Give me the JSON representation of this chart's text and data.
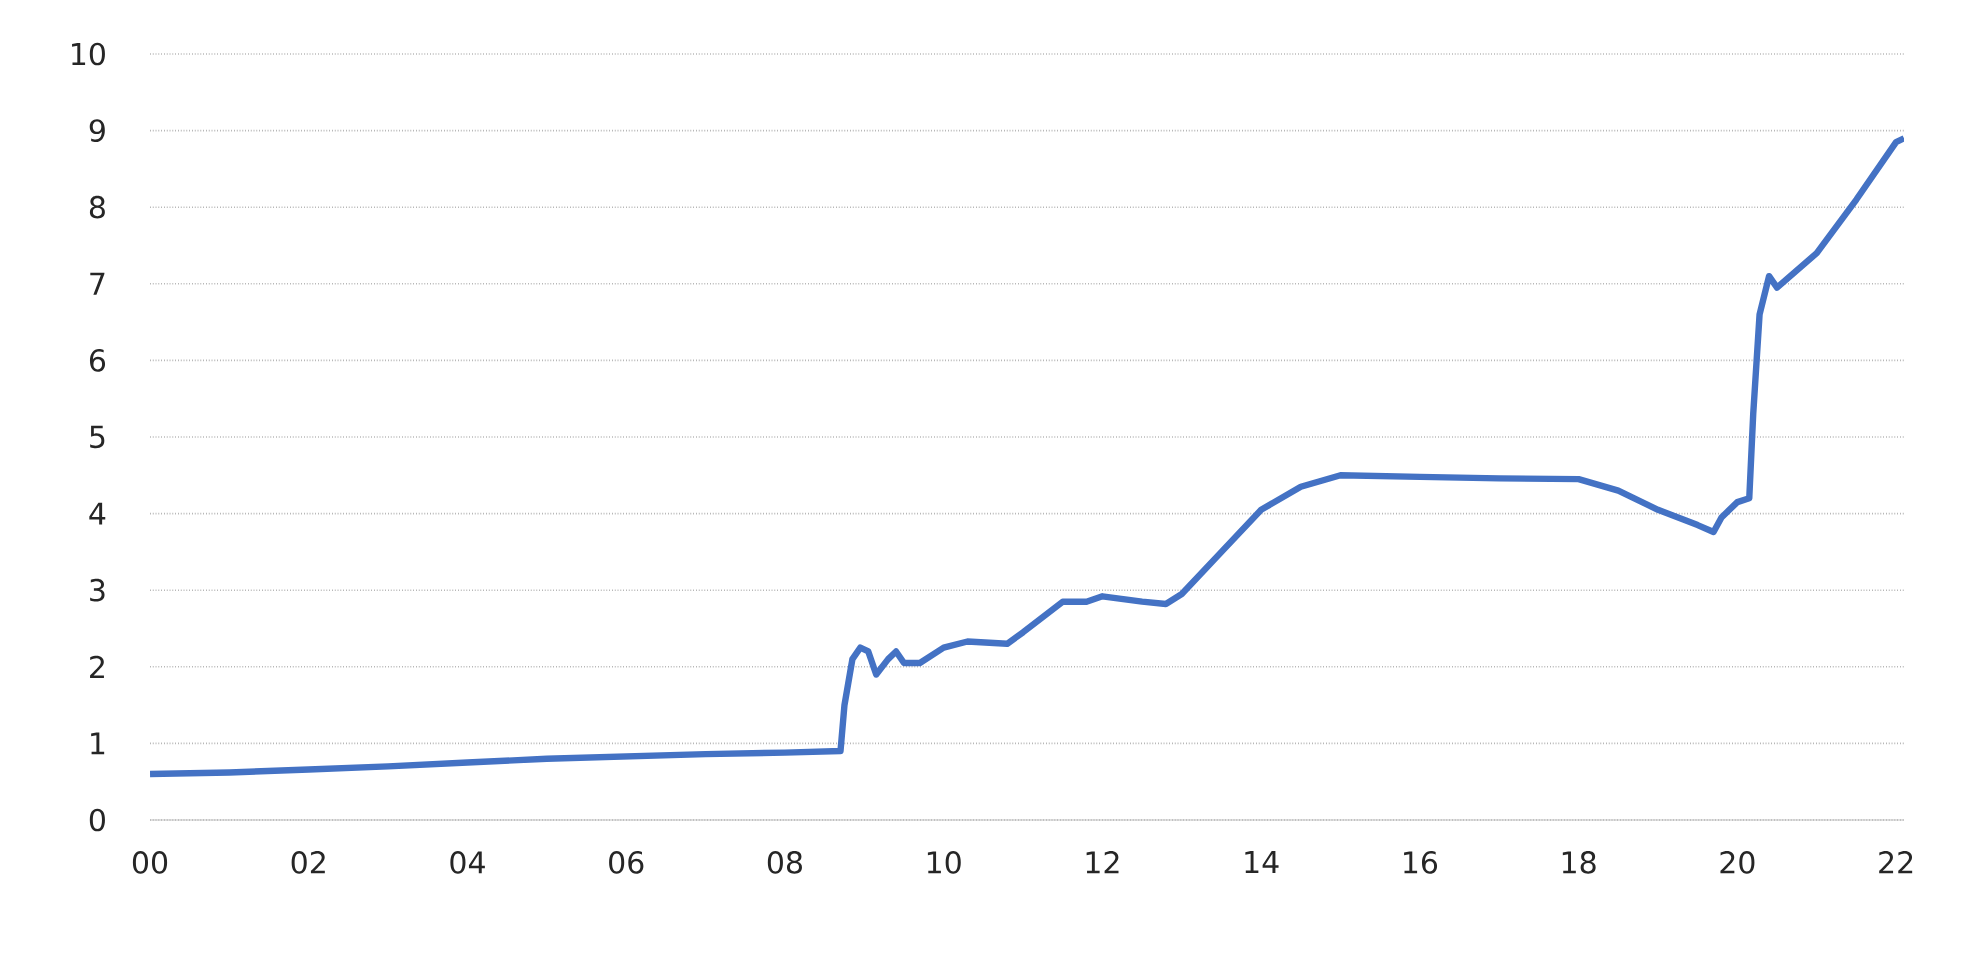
{
  "chart_data": {
    "type": "line",
    "x": [
      2000,
      2001,
      2002,
      2003,
      2004,
      2005,
      2006,
      2007,
      2008,
      2008.7,
      2008.75,
      2008.85,
      2008.95,
      2009.05,
      2009.15,
      2009.3,
      2009.4,
      2009.5,
      2009.7,
      2010,
      2010.3,
      2010.8,
      2011,
      2011.5,
      2011.8,
      2012,
      2012.5,
      2012.8,
      2013,
      2013.5,
      2014,
      2014.5,
      2015,
      2016,
      2017,
      2018,
      2018.5,
      2019,
      2019.5,
      2019.7,
      2019.8,
      2020,
      2020.15,
      2020.2,
      2020.28,
      2020.4,
      2020.5,
      2021,
      2021.5,
      2022,
      2022.1
    ],
    "series": [
      {
        "color": "#4472c4",
        "values": [
          0.6,
          0.62,
          0.66,
          0.7,
          0.75,
          0.8,
          0.83,
          0.86,
          0.88,
          0.9,
          1.5,
          2.1,
          2.25,
          2.2,
          1.9,
          2.1,
          2.2,
          2.05,
          2.05,
          2.25,
          2.33,
          2.3,
          2.45,
          2.85,
          2.85,
          2.92,
          2.85,
          2.82,
          2.95,
          3.5,
          4.05,
          4.35,
          4.5,
          4.48,
          4.46,
          4.45,
          4.3,
          4.05,
          3.85,
          3.76,
          3.95,
          4.15,
          4.2,
          5.3,
          6.6,
          7.1,
          6.95,
          7.4,
          8.1,
          8.85,
          8.9
        ]
      }
    ],
    "xlim": [
      2000,
      2022.1
    ],
    "xticks": [
      {
        "value": 2000,
        "label": "00"
      },
      {
        "value": 2002,
        "label": "02"
      },
      {
        "value": 2004,
        "label": "04"
      },
      {
        "value": 2006,
        "label": "06"
      },
      {
        "value": 2008,
        "label": "08"
      },
      {
        "value": 2010,
        "label": "10"
      },
      {
        "value": 2012,
        "label": "12"
      },
      {
        "value": 2014,
        "label": "14"
      },
      {
        "value": 2016,
        "label": "16"
      },
      {
        "value": 2018,
        "label": "18"
      },
      {
        "value": 2020,
        "label": "20"
      },
      {
        "value": 2022,
        "label": "22"
      }
    ],
    "ylim": [
      0,
      10
    ],
    "yticks": [
      0,
      1,
      2,
      3,
      4,
      5,
      6,
      7,
      8,
      9,
      10
    ],
    "grid": "y",
    "marker": "none",
    "line_style": "solid"
  }
}
